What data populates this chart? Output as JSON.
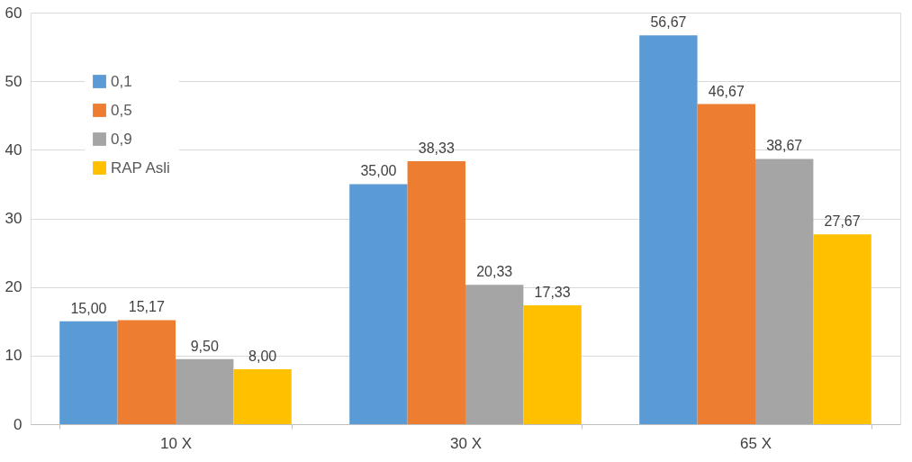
{
  "chart_data": {
    "type": "bar",
    "categories": [
      "10 X",
      "30 X",
      "65 X"
    ],
    "series": [
      {
        "name": "0,1",
        "color": "#5b9bd5",
        "values": [
          15.0,
          35.0,
          56.67
        ],
        "value_labels": [
          "15,00",
          "35,00",
          "56,67"
        ]
      },
      {
        "name": "0,5",
        "color": "#ed7d31",
        "values": [
          15.17,
          38.33,
          46.67
        ],
        "value_labels": [
          "15,17",
          "38,33",
          "46,67"
        ]
      },
      {
        "name": "0,9",
        "color": "#a5a5a5",
        "values": [
          9.5,
          20.33,
          38.67
        ],
        "value_labels": [
          "9,50",
          "20,33",
          "38,67"
        ]
      },
      {
        "name": "RAP Asli",
        "color": "#ffc000",
        "values": [
          8.0,
          17.33,
          27.67
        ],
        "value_labels": [
          "8,00",
          "17,33",
          "27,67"
        ]
      }
    ],
    "ylim": [
      0,
      60
    ],
    "yticks": [
      0,
      10,
      20,
      30,
      40,
      50,
      60
    ],
    "grid": "y",
    "legend": "top left"
  }
}
